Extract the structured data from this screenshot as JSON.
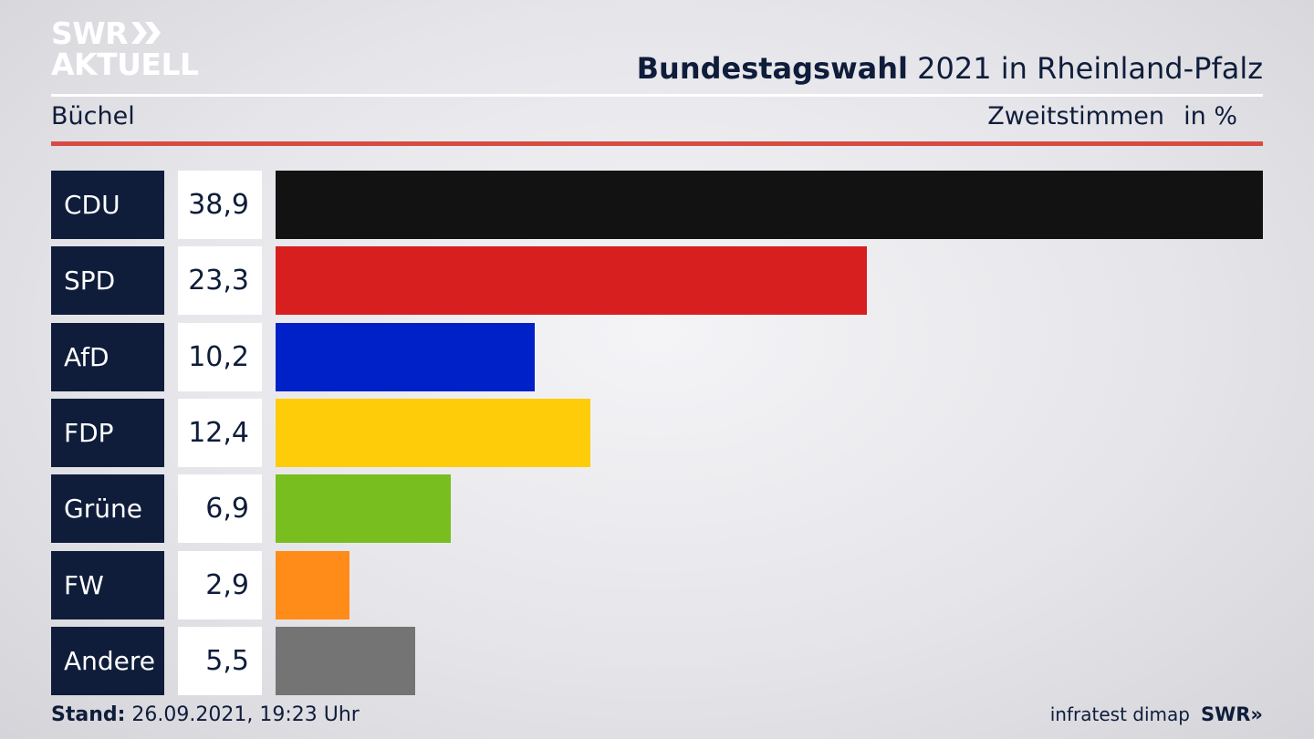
{
  "header": {
    "logo_top": "SWR",
    "logo_chevrons": "»",
    "logo_bottom": "AKTUELL",
    "title_bold": "Bundestagswahl",
    "title_rest": " 2021 in Rheinland-Pfalz",
    "region": "Büchel",
    "measure": "Zweitstimmen",
    "unit": "in %"
  },
  "chart_data": {
    "type": "bar",
    "orientation": "horizontal",
    "categories": [
      "CDU",
      "SPD",
      "AfD",
      "FDP",
      "Grüne",
      "FW",
      "Andere"
    ],
    "values": [
      38.9,
      23.3,
      10.2,
      12.4,
      6.9,
      2.9,
      5.5
    ],
    "value_labels": [
      "38,9",
      "23,3",
      "10,2",
      "12,4",
      "6,9",
      "2,9",
      "5,5"
    ],
    "colors": [
      "#121212",
      "#d81f1f",
      "#0020c8",
      "#ffcc0a",
      "#78be1e",
      "#ff8c18",
      "#747474"
    ],
    "xlim": [
      0,
      38.9
    ],
    "grid": false,
    "legend": "none"
  },
  "footer": {
    "stand_label": "Stand:",
    "stand_value": " 26.09.2021, 19:23 Uhr",
    "source": "infratest dimap",
    "brand": "SWR",
    "brand_chevrons": "»"
  },
  "colors": {
    "navy": "#0f1d3b",
    "accent_red": "#d84b42"
  }
}
